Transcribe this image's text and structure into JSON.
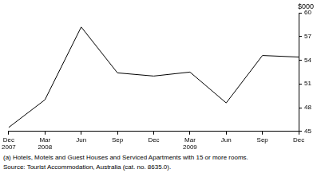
{
  "chart_data": {
    "type": "line",
    "ylabel": "$000",
    "categories": [
      "Dec 2007",
      "Mar 2008",
      "Jun",
      "Sep",
      "Dec",
      "Mar 2009",
      "Jun",
      "Sep",
      "Dec"
    ],
    "values": [
      45.5,
      49,
      58.2,
      52.4,
      52,
      52.5,
      48.6,
      54.6,
      54.4
    ],
    "color": "#000000",
    "ylim": [
      45,
      60
    ],
    "yticks": [
      45,
      48,
      51,
      54,
      57,
      60
    ],
    "grid": false,
    "notes": [
      "(a) Hotels, Motels and Guest Houses and Serviced Apartments with 15 or more rooms.",
      "Source: Tourist Accommodation, Australia (cat. no. 8635.0)."
    ]
  }
}
